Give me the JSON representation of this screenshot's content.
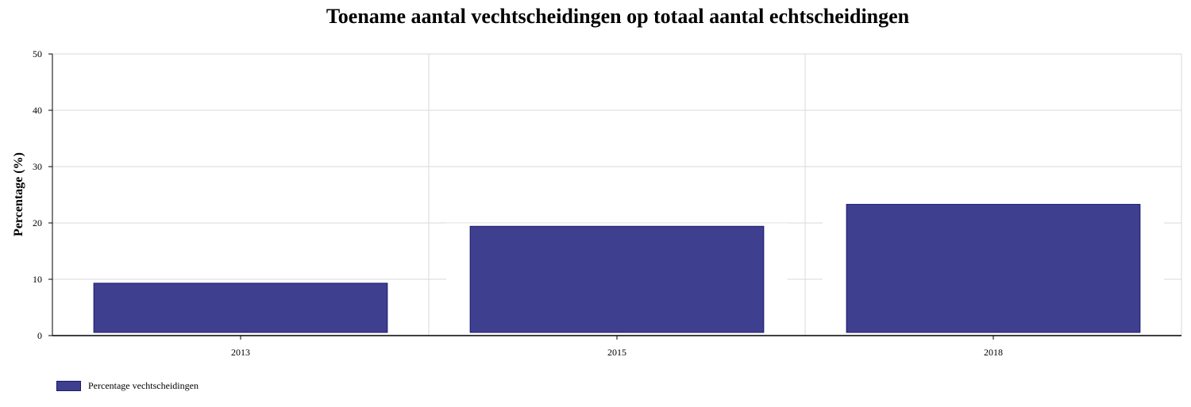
{
  "chart_data": {
    "type": "bar",
    "title": "Toename aantal vechtscheidingen op totaal aantal echtscheidingen",
    "xlabel": "",
    "ylabel": "Percentage (%)",
    "categories": [
      "2013",
      "2015",
      "2018"
    ],
    "series": [
      {
        "name": "Percentage vechtscheidingen",
        "values": [
          9.3,
          19.4,
          23.3
        ],
        "color": "#3e3f8f",
        "border_color": "#1a1a6e"
      }
    ],
    "ylim": [
      0,
      50
    ],
    "yticks": [
      "0",
      "10",
      "20",
      "30",
      "40",
      "50"
    ],
    "grid": true,
    "legend_position": "bottom-left"
  }
}
